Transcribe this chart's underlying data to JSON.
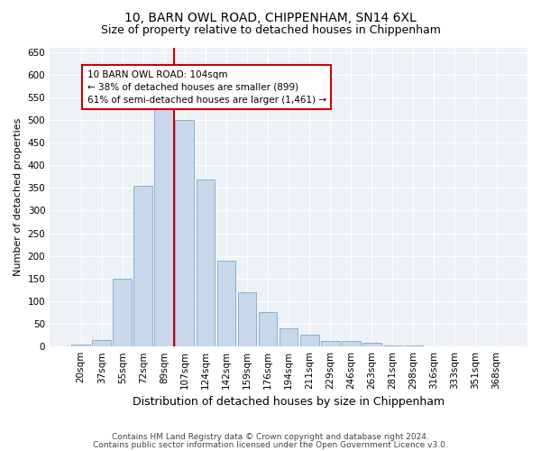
{
  "title1": "10, BARN OWL ROAD, CHIPPENHAM, SN14 6XL",
  "title2": "Size of property relative to detached houses in Chippenham",
  "xlabel": "Distribution of detached houses by size in Chippenham",
  "ylabel": "Number of detached properties",
  "categories": [
    "20sqm",
    "37sqm",
    "55sqm",
    "72sqm",
    "89sqm",
    "107sqm",
    "124sqm",
    "142sqm",
    "159sqm",
    "176sqm",
    "194sqm",
    "211sqm",
    "229sqm",
    "246sqm",
    "263sqm",
    "281sqm",
    "298sqm",
    "316sqm",
    "333sqm",
    "351sqm",
    "368sqm"
  ],
  "values": [
    5,
    15,
    150,
    355,
    530,
    500,
    368,
    190,
    120,
    75,
    40,
    27,
    13,
    13,
    8,
    3,
    3,
    0,
    0,
    0,
    0
  ],
  "bar_color": "#c8d8ea",
  "bar_edge_color": "#7aaac8",
  "vline_color": "#cc0000",
  "vline_x_index": 4.5,
  "annotation_text": "10 BARN OWL ROAD: 104sqm\n← 38% of detached houses are smaller (899)\n61% of semi-detached houses are larger (1,461) →",
  "annotation_box_color": "#cc0000",
  "ylim": [
    0,
    660
  ],
  "yticks": [
    0,
    50,
    100,
    150,
    200,
    250,
    300,
    350,
    400,
    450,
    500,
    550,
    600,
    650
  ],
  "footer1": "Contains HM Land Registry data © Crown copyright and database right 2024.",
  "footer2": "Contains public sector information licensed under the Open Government Licence v3.0.",
  "bg_color": "#ffffff",
  "plot_bg_color": "#eef2f7",
  "grid_color": "#ffffff",
  "title1_fontsize": 10,
  "title2_fontsize": 9,
  "xlabel_fontsize": 9,
  "ylabel_fontsize": 8,
  "tick_fontsize": 7.5,
  "annotation_fontsize": 7.5,
  "footer_fontsize": 6.5
}
